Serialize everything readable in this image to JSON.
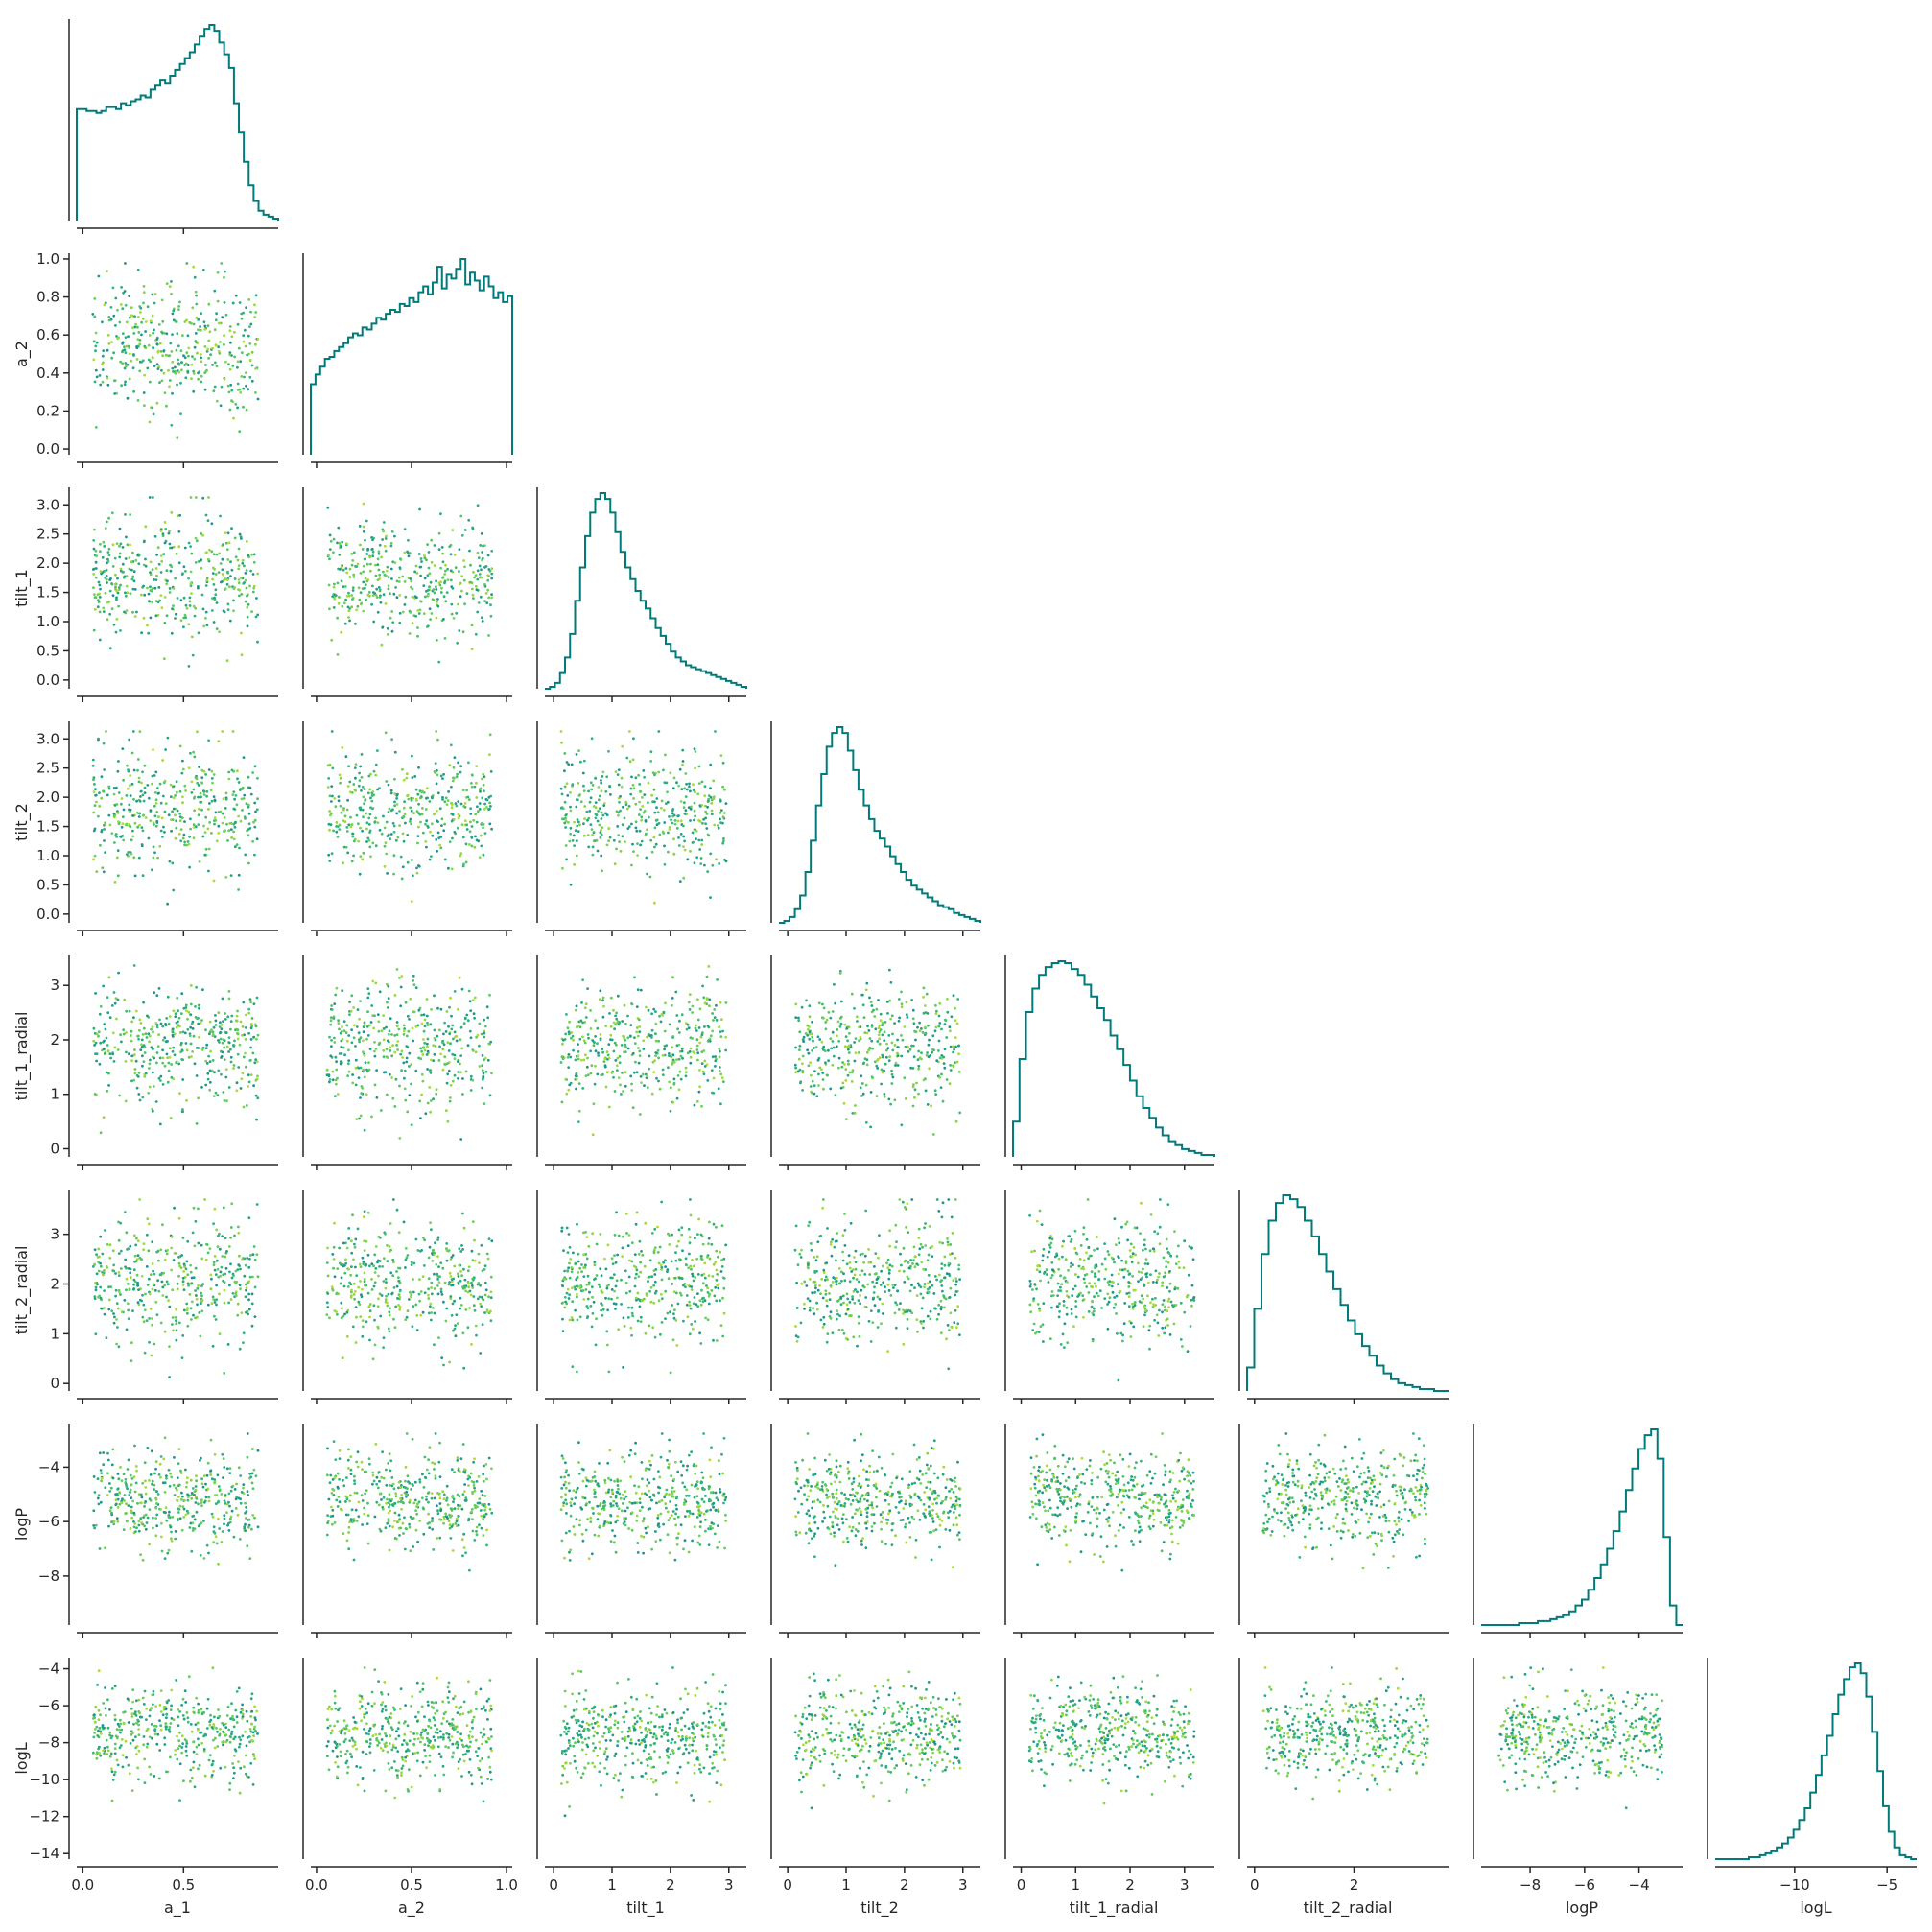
{
  "chart_data": {
    "type": "scatter",
    "title": "",
    "variables": [
      "a_1",
      "a_2",
      "tilt_1",
      "tilt_2",
      "tilt_1_radial",
      "tilt_2_radial",
      "logP",
      "logL"
    ],
    "axis_ranges": {
      "a_1": [
        -0.03,
        0.97
      ],
      "a_2": [
        -0.03,
        1.03
      ],
      "tilt_1": [
        -0.15,
        3.3
      ],
      "tilt_2": [
        -0.15,
        3.3
      ],
      "tilt_1_radial": [
        -0.15,
        3.55
      ],
      "tilt_2_radial": [
        -0.15,
        3.9
      ],
      "logP": [
        -9.8,
        -2.4
      ],
      "logL": [
        -14.3,
        -3.4
      ]
    },
    "ticks": {
      "a_1": [
        {
          "v": 0,
          "label": "0.0"
        },
        {
          "v": 0.5,
          "label": "0.5"
        }
      ],
      "a_2": [
        {
          "v": 0,
          "label": "0.0"
        },
        {
          "v": 0.2,
          "label": "0.2"
        },
        {
          "v": 0.4,
          "label": "0.4"
        },
        {
          "v": 0.5,
          "label": "0.5"
        },
        {
          "v": 0.6,
          "label": "0.6"
        },
        {
          "v": 0.8,
          "label": "0.8"
        },
        {
          "v": 1.0,
          "label": "1.0"
        }
      ],
      "tilt_1": [
        {
          "v": 0,
          "label": "0.0"
        },
        {
          "v": 0.5,
          "label": "0.5"
        },
        {
          "v": 1.0,
          "label": "1.0"
        },
        {
          "v": 1.5,
          "label": "1.5"
        },
        {
          "v": 2.0,
          "label": "2.0"
        },
        {
          "v": 2.5,
          "label": "2.5"
        },
        {
          "v": 3.0,
          "label": "3.0"
        }
      ],
      "tilt_2": [
        {
          "v": 0,
          "label": "0.0"
        },
        {
          "v": 0.5,
          "label": "0.5"
        },
        {
          "v": 1.0,
          "label": "1.0"
        },
        {
          "v": 1.5,
          "label": "1.5"
        },
        {
          "v": 2.0,
          "label": "2.0"
        },
        {
          "v": 2.5,
          "label": "2.5"
        },
        {
          "v": 3.0,
          "label": "3.0"
        }
      ],
      "tilt_1_radial": [
        {
          "v": 0,
          "label": "0"
        },
        {
          "v": 1,
          "label": "1"
        },
        {
          "v": 2,
          "label": "2"
        },
        {
          "v": 3,
          "label": "3"
        }
      ],
      "tilt_2_radial": [
        {
          "v": 0,
          "label": "0"
        },
        {
          "v": 1,
          "label": "1"
        },
        {
          "v": 2,
          "label": "2"
        },
        {
          "v": 3,
          "label": "3"
        }
      ],
      "logP": [
        {
          "v": -8,
          "label": "−8"
        },
        {
          "v": -6,
          "label": "−6"
        },
        {
          "v": -4,
          "label": "−4"
        }
      ],
      "logL": [
        {
          "v": -14,
          "label": "−14"
        },
        {
          "v": -12,
          "label": "−12"
        },
        {
          "v": -10,
          "label": "−10"
        },
        {
          "v": -8,
          "label": "−8"
        },
        {
          "v": -6,
          "label": "−6"
        },
        {
          "v": -5,
          "label": "−5"
        },
        {
          "v": -4,
          "label": "−4"
        }
      ]
    },
    "x_ticks_override": {
      "tilt_1": [
        {
          "v": 0,
          "label": "0"
        },
        {
          "v": 1,
          "label": "1"
        },
        {
          "v": 2,
          "label": "2"
        },
        {
          "v": 3,
          "label": "3"
        }
      ],
      "tilt_2": [
        {
          "v": 0,
          "label": "0"
        },
        {
          "v": 1,
          "label": "1"
        },
        {
          "v": 2,
          "label": "2"
        },
        {
          "v": 3,
          "label": "3"
        }
      ],
      "tilt_2_radial": [
        {
          "v": 0,
          "label": "0"
        },
        {
          "v": 2,
          "label": "2"
        }
      ],
      "a_2": [
        {
          "v": 0,
          "label": "0.0"
        },
        {
          "v": 0.5,
          "label": "0.5"
        },
        {
          "v": 1.0,
          "label": "1.0"
        }
      ],
      "logL": [
        {
          "v": -10,
          "label": "−10"
        },
        {
          "v": -5,
          "label": "−5"
        }
      ]
    },
    "y_ticks_override": {
      "a_2": [
        {
          "v": 0,
          "label": "0.0"
        },
        {
          "v": 0.2,
          "label": "0.2"
        },
        {
          "v": 0.4,
          "label": "0.4"
        },
        {
          "v": 0.6,
          "label": "0.6"
        },
        {
          "v": 0.8,
          "label": "0.8"
        },
        {
          "v": 1.0,
          "label": "1.0"
        }
      ],
      "logP": [
        {
          "v": -8,
          "label": "−8"
        },
        {
          "v": -6,
          "label": "−6"
        },
        {
          "v": -4,
          "label": "−4"
        }
      ],
      "logL": [
        {
          "v": -14,
          "label": "−14"
        },
        {
          "v": -12,
          "label": "−12"
        },
        {
          "v": -10,
          "label": "−10"
        },
        {
          "v": -8,
          "label": "−8"
        },
        {
          "v": -6,
          "label": "−6"
        },
        {
          "v": -4,
          "label": "−4"
        }
      ]
    },
    "histograms": {
      "a_1": [
        0.57,
        0.57,
        0.56,
        0.56,
        0.55,
        0.56,
        0.58,
        0.58,
        0.57,
        0.6,
        0.59,
        0.61,
        0.62,
        0.64,
        0.63,
        0.67,
        0.69,
        0.72,
        0.7,
        0.74,
        0.77,
        0.8,
        0.83,
        0.86,
        0.9,
        0.94,
        0.98,
        1.0,
        0.97,
        0.91,
        0.85,
        0.78,
        0.6,
        0.45,
        0.3,
        0.18,
        0.1,
        0.05,
        0.03,
        0.02,
        0.01
      ],
      "a_2": [
        0.36,
        0.41,
        0.45,
        0.49,
        0.5,
        0.53,
        0.55,
        0.57,
        0.6,
        0.62,
        0.61,
        0.65,
        0.64,
        0.67,
        0.7,
        0.69,
        0.72,
        0.74,
        0.73,
        0.77,
        0.76,
        0.8,
        0.78,
        0.83,
        0.86,
        0.82,
        0.88,
        0.96,
        0.85,
        0.92,
        0.9,
        0.95,
        1.0,
        0.87,
        0.93,
        0.89,
        0.84,
        0.91,
        0.86,
        0.8,
        0.83,
        0.78,
        0.81
      ],
      "tilt_1": [
        0.0,
        0.01,
        0.03,
        0.08,
        0.16,
        0.28,
        0.45,
        0.62,
        0.78,
        0.9,
        0.97,
        1.0,
        0.97,
        0.9,
        0.8,
        0.7,
        0.62,
        0.56,
        0.5,
        0.45,
        0.41,
        0.36,
        0.31,
        0.27,
        0.23,
        0.19,
        0.16,
        0.14,
        0.12,
        0.11,
        0.1,
        0.09,
        0.08,
        0.07,
        0.06,
        0.05,
        0.04,
        0.03,
        0.02,
        0.01
      ],
      "tilt_2": [
        0.0,
        0.01,
        0.03,
        0.07,
        0.14,
        0.26,
        0.42,
        0.6,
        0.76,
        0.9,
        0.97,
        1.0,
        0.97,
        0.88,
        0.78,
        0.68,
        0.6,
        0.53,
        0.47,
        0.43,
        0.39,
        0.34,
        0.3,
        0.26,
        0.22,
        0.19,
        0.17,
        0.15,
        0.13,
        0.11,
        0.09,
        0.08,
        0.07,
        0.05,
        0.04,
        0.03,
        0.02,
        0.01
      ],
      "tilt_1_radial": [
        0.18,
        0.5,
        0.74,
        0.86,
        0.93,
        0.97,
        0.99,
        1.0,
        0.99,
        0.96,
        0.93,
        0.88,
        0.82,
        0.76,
        0.7,
        0.62,
        0.55,
        0.47,
        0.39,
        0.31,
        0.25,
        0.2,
        0.15,
        0.11,
        0.08,
        0.06,
        0.04,
        0.03,
        0.02,
        0.01,
        0.01
      ],
      "tilt_2_radial": [
        0.12,
        0.42,
        0.7,
        0.87,
        0.96,
        1.0,
        0.98,
        0.94,
        0.87,
        0.79,
        0.7,
        0.61,
        0.52,
        0.44,
        0.36,
        0.29,
        0.23,
        0.18,
        0.13,
        0.09,
        0.06,
        0.04,
        0.03,
        0.02,
        0.01,
        0.01,
        0.0,
        0.0
      ],
      "logP": [
        0.0,
        0.0,
        0.0,
        0.0,
        0.0,
        0.0,
        0.01,
        0.01,
        0.01,
        0.02,
        0.02,
        0.03,
        0.04,
        0.05,
        0.07,
        0.1,
        0.13,
        0.18,
        0.24,
        0.31,
        0.39,
        0.48,
        0.58,
        0.69,
        0.8,
        0.9,
        0.97,
        1.0,
        0.85,
        0.45,
        0.1,
        0.0
      ],
      "logL": [
        0.0,
        0.0,
        0.0,
        0.0,
        0.0,
        0.0,
        0.01,
        0.01,
        0.02,
        0.03,
        0.04,
        0.06,
        0.08,
        0.11,
        0.15,
        0.2,
        0.26,
        0.34,
        0.43,
        0.53,
        0.63,
        0.74,
        0.84,
        0.92,
        0.98,
        1.0,
        0.95,
        0.83,
        0.65,
        0.45,
        0.27,
        0.14,
        0.06,
        0.02,
        0.01,
        0.0
      ]
    },
    "scatter_points_per_panel": 420,
    "colormap": [
      "#440154",
      "#31688e",
      "#26828e",
      "#1f9e89",
      "#35b779",
      "#6ece58",
      "#b5de2b",
      "#fde725"
    ],
    "histogram_color": "#007a7a",
    "grid": false,
    "legend": "none"
  },
  "xlabels": [
    "a_1",
    "a_2",
    "tilt_1",
    "tilt_2",
    "tilt_1_radial",
    "tilt_2_radial",
    "logP",
    "logL"
  ],
  "ylabels": [
    "",
    "a_2",
    "tilt_1",
    "tilt_2",
    "tilt_1_radial",
    "tilt_2_radial",
    "logP",
    "logL"
  ]
}
